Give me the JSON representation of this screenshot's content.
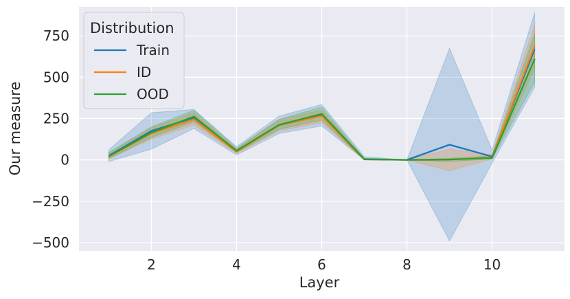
{
  "chart_data": {
    "type": "line",
    "title": "",
    "xlabel": "Layer",
    "ylabel": "Our measure",
    "xlim": [
      0.3,
      11.7
    ],
    "ylim": [
      -550,
      925
    ],
    "xticks": [
      2,
      4,
      6,
      8,
      10
    ],
    "xtick_labels": [
      "2",
      "4",
      "6",
      "8",
      "10"
    ],
    "yticks": [
      -500,
      -250,
      0,
      250,
      500,
      750
    ],
    "ytick_labels": [
      "−500",
      "−250",
      "0",
      "250",
      "500",
      "750"
    ],
    "grid": true,
    "style": "seaborn-darkgrid",
    "background": "#eaeaf2",
    "legend": {
      "title": "Distribution",
      "position": "top-left"
    },
    "x": [
      1,
      2,
      3,
      4,
      5,
      6,
      7,
      8,
      9,
      10,
      11
    ],
    "series": [
      {
        "name": "Train",
        "color": "#1f77b4",
        "values": [
          25,
          175,
          255,
          55,
          210,
          270,
          5,
          0,
          92,
          20,
          670
        ],
        "band_low": [
          -10,
          65,
          190,
          30,
          160,
          205,
          0,
          0,
          -490,
          -20,
          440
        ],
        "band_high": [
          60,
          285,
          305,
          80,
          265,
          335,
          20,
          0,
          675,
          60,
          890
        ]
      },
      {
        "name": "ID",
        "color": "#ff7f0e",
        "values": [
          20,
          160,
          245,
          50,
          210,
          265,
          3,
          0,
          2,
          15,
          690
        ],
        "band_low": [
          5,
          125,
          210,
          40,
          175,
          225,
          0,
          0,
          -65,
          5,
          550
        ],
        "band_high": [
          40,
          195,
          285,
          65,
          245,
          300,
          8,
          0,
          65,
          30,
          820
        ]
      },
      {
        "name": "OOD",
        "color": "#2ca02c",
        "values": [
          22,
          165,
          262,
          55,
          212,
          278,
          3,
          0,
          2,
          12,
          610
        ],
        "band_low": [
          8,
          135,
          230,
          45,
          185,
          240,
          0,
          0,
          -10,
          5,
          470
        ],
        "band_high": [
          45,
          200,
          300,
          70,
          245,
          320,
          8,
          0,
          10,
          25,
          765
        ]
      }
    ]
  }
}
